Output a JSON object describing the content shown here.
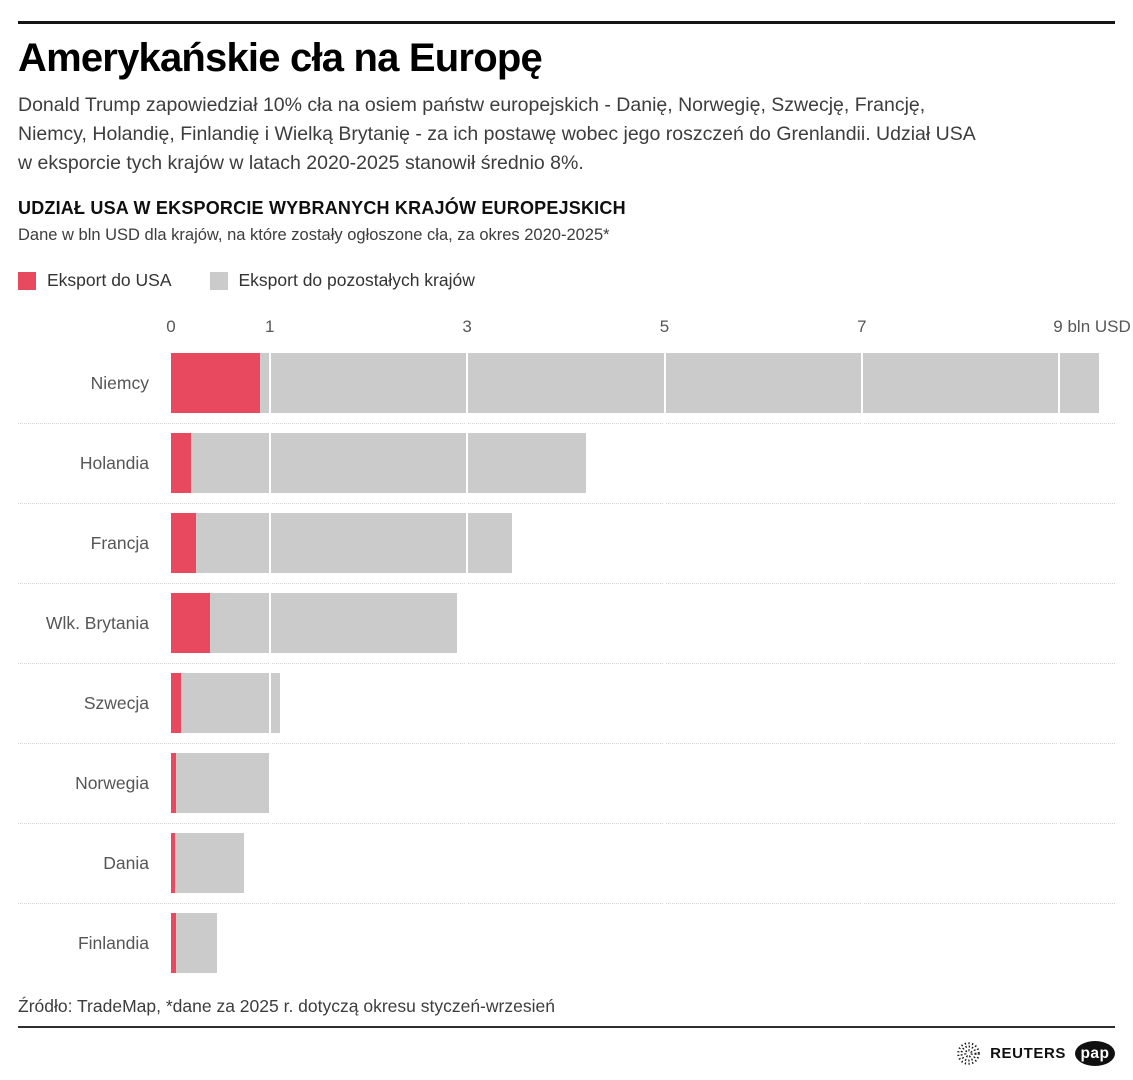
{
  "page": {
    "title": "Amerykańskie cła na Europę",
    "intro_lines": [
      "Donald Trump zapowiedział 10% cła na osiem państw europejskich - Danię, Norwegię, Szwecję, Francję,",
      "Niemcy, Holandię, Finlandię i Wielką Brytanię - za ich postawę wobec jego roszczeń do Grenlandii. Udział USA",
      "w eksporcie tych krajów w latach 2020-2025 stanowił średnio 8%."
    ]
  },
  "section": {
    "heading": "UDZIAŁ USA W EKSPORCIE WYBRANYCH KRAJÓW EUROPEJSKICH",
    "caption": "Dane w bln USD dla krajów, na które zostały ogłoszone cła, za okres 2020-2025*"
  },
  "chart_data": {
    "type": "bar",
    "orientation": "horizontal",
    "stacked": true,
    "title": "UDZIAŁ USA W EKSPORCIE WYBRANYCH KRAJÓW EUROPEJSKICH",
    "subtitle": "Dane w bln USD dla krajów, na które zostały ogłoszone cła, za okres 2020-2025*",
    "unit": "bln USD",
    "categories": [
      "Niemcy",
      "Holandia",
      "Francja",
      "Wlk. Brytania",
      "Szwecja",
      "Norwegia",
      "Dania",
      "Finlandia"
    ],
    "series": [
      {
        "name": "Eksport do USA",
        "color": "#e8495f",
        "values": [
          0.9,
          0.2,
          0.25,
          0.4,
          0.1,
          0.05,
          0.04,
          0.05
        ]
      },
      {
        "name": "Eksport do pozostałych krajów",
        "color": "#cbcbcb",
        "values": [
          8.5,
          4.0,
          3.2,
          2.5,
          1.0,
          0.95,
          0.7,
          0.42
        ]
      }
    ],
    "totals": [
      9.4,
      4.2,
      3.45,
      2.9,
      1.1,
      1.0,
      0.74,
      0.47
    ],
    "xlim": [
      0,
      9.4
    ],
    "ticks": [
      {
        "value": 0,
        "label": "0"
      },
      {
        "value": 1,
        "label": "1"
      },
      {
        "value": 3,
        "label": "3"
      },
      {
        "value": 5,
        "label": "5"
      },
      {
        "value": 7,
        "label": "7"
      },
      {
        "value": 9,
        "label": "9 bln USD"
      }
    ],
    "gridlines": [
      1,
      3,
      5,
      7,
      9
    ],
    "legend_position": "top",
    "grid": "white-lines-over-bars"
  },
  "footer": {
    "source": "Źródło: TradeMap, *dane za 2025 r. dotyczą okresu styczeń-wrzesień",
    "reuters_label": "REUTERS",
    "pap_label": "pap"
  }
}
